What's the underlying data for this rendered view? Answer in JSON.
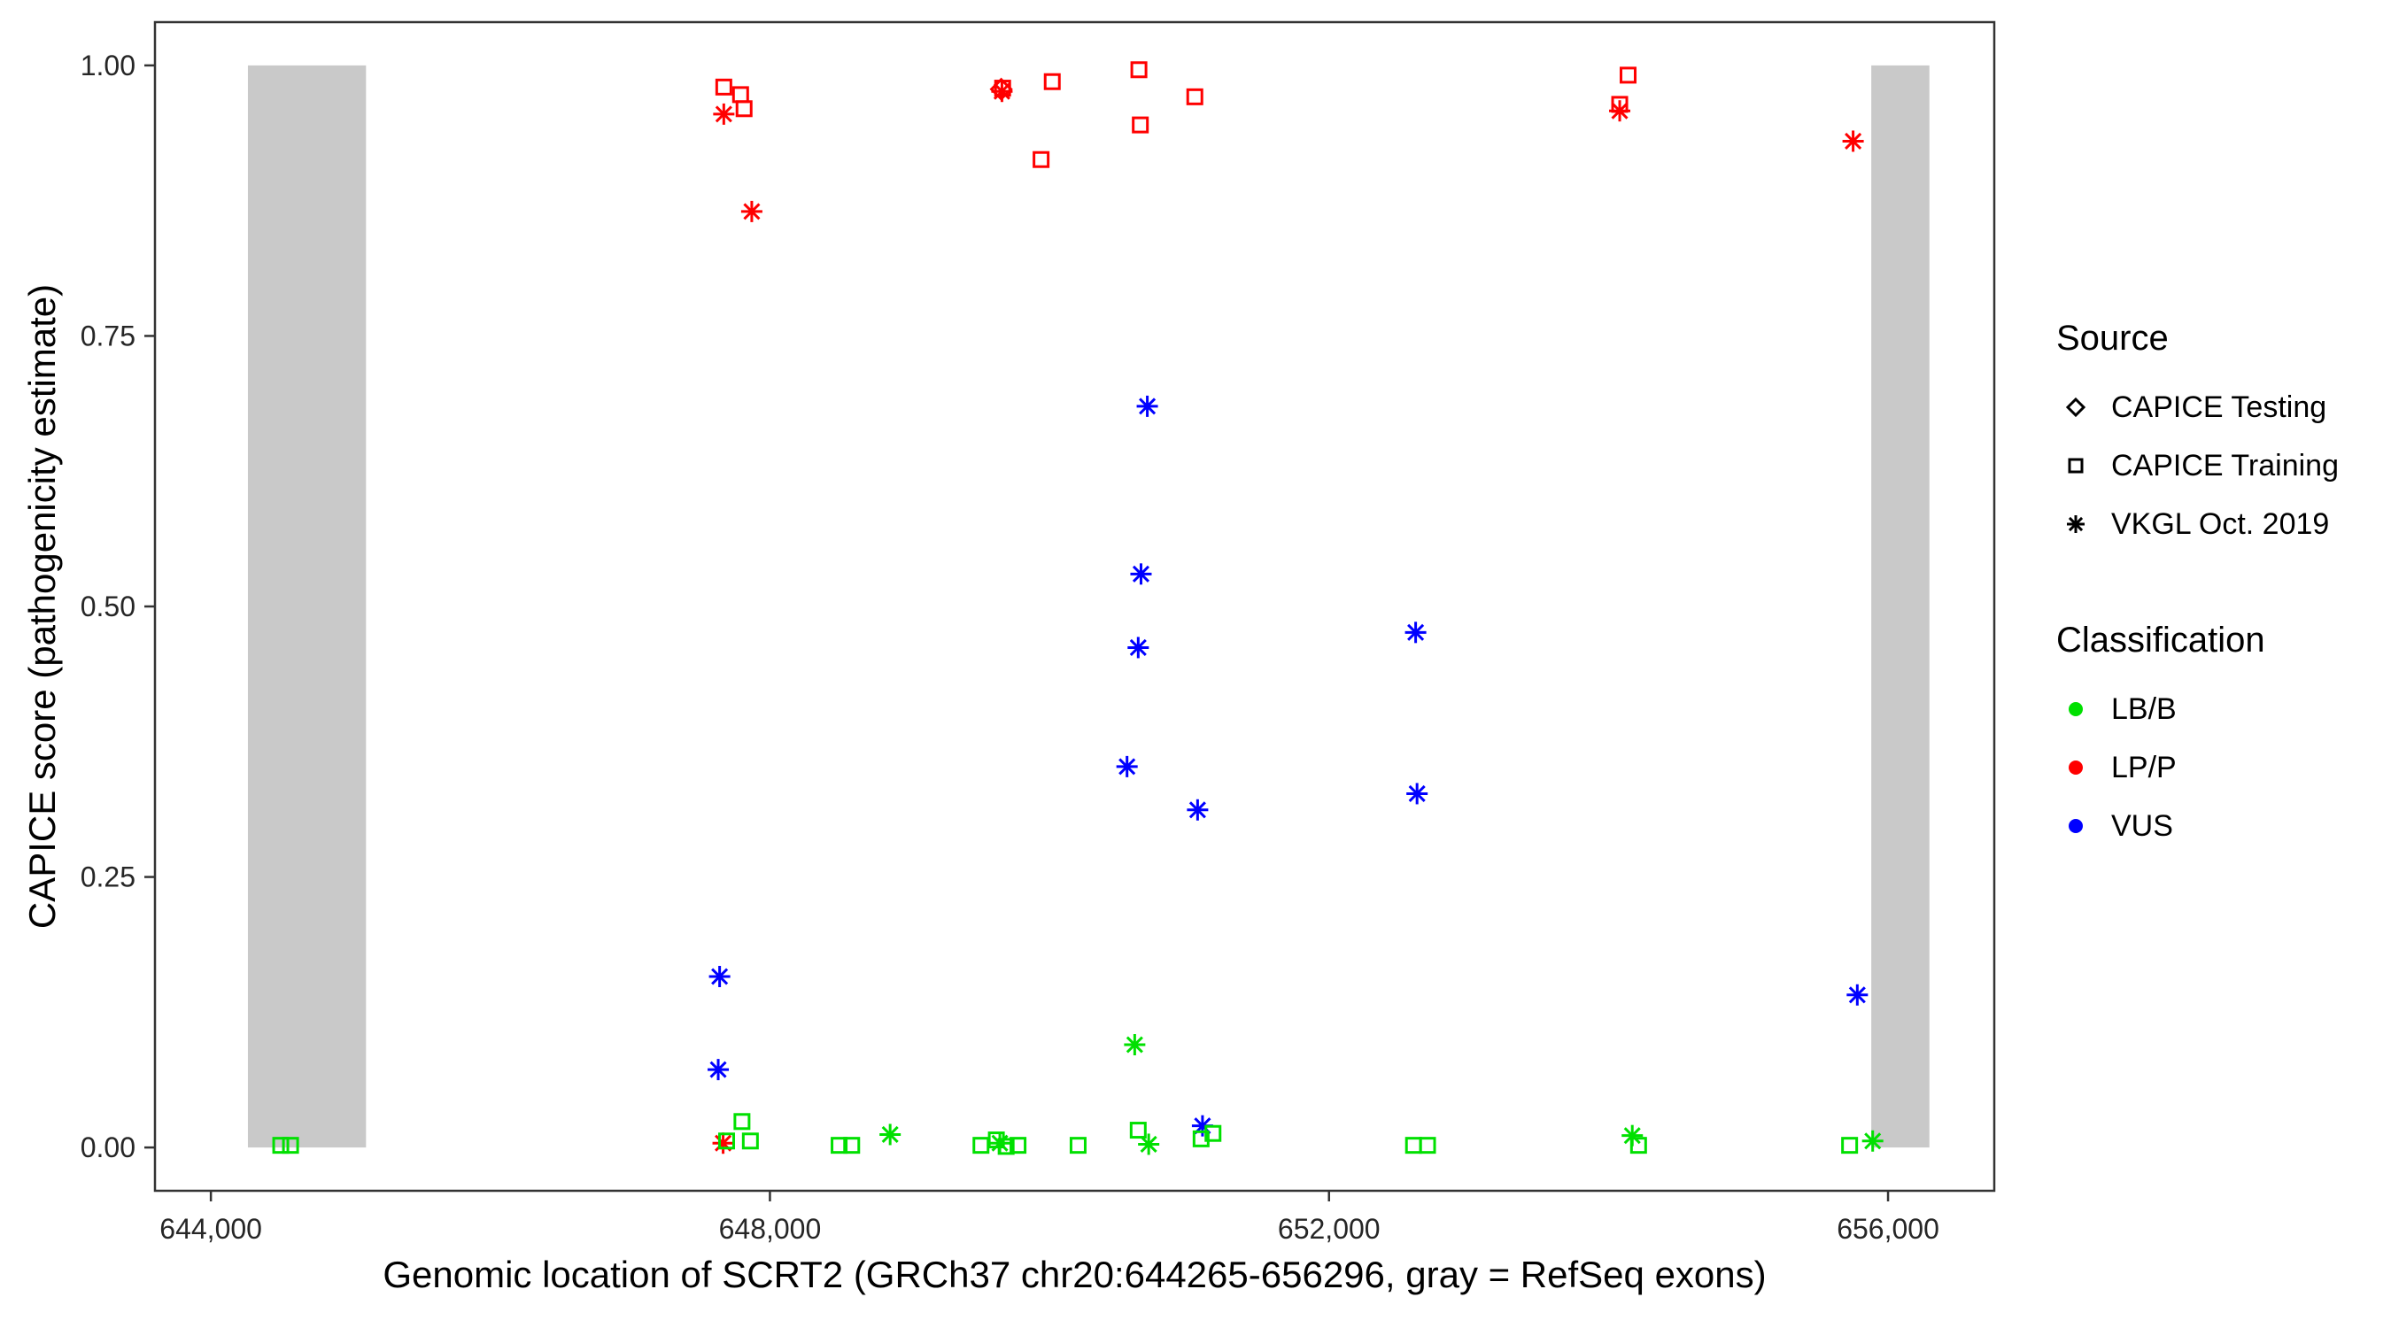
{
  "chart_data": {
    "type": "scatter",
    "title": "",
    "xlabel": "Genomic location of SCRT2 (GRCh37 chr20:644265-656296, gray = RefSeq exons)",
    "ylabel": "CAPICE score (pathogenicity estimate)",
    "xlim": [
      643600,
      656760
    ],
    "ylim": [
      -0.04,
      1.04
    ],
    "grid": false,
    "x_ticks": [
      {
        "value": 644000,
        "label": "644,000"
      },
      {
        "value": 648000,
        "label": "648,000"
      },
      {
        "value": 652000,
        "label": "652,000"
      },
      {
        "value": 656000,
        "label": "656,000"
      }
    ],
    "y_ticks": [
      {
        "value": 0.0,
        "label": "0.00"
      },
      {
        "value": 0.25,
        "label": "0.25"
      },
      {
        "value": 0.5,
        "label": "0.50"
      },
      {
        "value": 0.75,
        "label": "0.75"
      },
      {
        "value": 1.0,
        "label": "1.00"
      }
    ],
    "exons": [
      {
        "x0": 644265,
        "x1": 645110,
        "y0": 0.0,
        "y1": 1.0
      },
      {
        "x0": 655880,
        "x1": 656296,
        "y0": 0.0,
        "y1": 1.0
      }
    ],
    "colors": {
      "LB/B": "#00e000",
      "LP/P": "#ff0000",
      "VUS": "#0000ff",
      "exon": "#c9c9c9",
      "axis": "#333333",
      "tick_text": "#262626"
    },
    "legend": {
      "source_title": "Source",
      "source_items": [
        {
          "shape": "diamond",
          "label": "CAPICE Testing"
        },
        {
          "shape": "square",
          "label": "CAPICE Training"
        },
        {
          "shape": "asterisk",
          "label": "VKGL Oct. 2019"
        }
      ],
      "classification_title": "Classification",
      "classification_items": [
        {
          "cls": "LB/B",
          "label": "LB/B"
        },
        {
          "cls": "LP/P",
          "label": "LP/P"
        },
        {
          "cls": "VUS",
          "label": "VUS"
        }
      ]
    },
    "points": [
      {
        "x": 647670,
        "y": 0.98,
        "shape": "square",
        "cls": "LP/P"
      },
      {
        "x": 647790,
        "y": 0.973,
        "shape": "square",
        "cls": "LP/P"
      },
      {
        "x": 647815,
        "y": 0.96,
        "shape": "square",
        "cls": "LP/P"
      },
      {
        "x": 647670,
        "y": 0.955,
        "shape": "asterisk",
        "cls": "LP/P"
      },
      {
        "x": 647870,
        "y": 0.865,
        "shape": "asterisk",
        "cls": "LP/P"
      },
      {
        "x": 649665,
        "y": 0.979,
        "shape": "square",
        "cls": "LP/P"
      },
      {
        "x": 649655,
        "y": 0.978,
        "shape": "diamond",
        "cls": "LP/P"
      },
      {
        "x": 649660,
        "y": 0.976,
        "shape": "asterisk",
        "cls": "LP/P"
      },
      {
        "x": 650020,
        "y": 0.985,
        "shape": "square",
        "cls": "LP/P"
      },
      {
        "x": 649940,
        "y": 0.913,
        "shape": "square",
        "cls": "LP/P"
      },
      {
        "x": 650640,
        "y": 0.996,
        "shape": "square",
        "cls": "LP/P"
      },
      {
        "x": 650650,
        "y": 0.945,
        "shape": "square",
        "cls": "LP/P"
      },
      {
        "x": 651040,
        "y": 0.971,
        "shape": "square",
        "cls": "LP/P"
      },
      {
        "x": 654140,
        "y": 0.991,
        "shape": "square",
        "cls": "LP/P"
      },
      {
        "x": 654080,
        "y": 0.964,
        "shape": "square",
        "cls": "LP/P"
      },
      {
        "x": 654080,
        "y": 0.958,
        "shape": "asterisk",
        "cls": "LP/P"
      },
      {
        "x": 655750,
        "y": 0.93,
        "shape": "asterisk",
        "cls": "LP/P"
      },
      {
        "x": 647665,
        "y": 0.004,
        "shape": "asterisk",
        "cls": "LP/P"
      },
      {
        "x": 650700,
        "y": 0.685,
        "shape": "asterisk",
        "cls": "VUS"
      },
      {
        "x": 650655,
        "y": 0.53,
        "shape": "asterisk",
        "cls": "VUS"
      },
      {
        "x": 650635,
        "y": 0.462,
        "shape": "asterisk",
        "cls": "VUS"
      },
      {
        "x": 650555,
        "y": 0.352,
        "shape": "asterisk",
        "cls": "VUS"
      },
      {
        "x": 651060,
        "y": 0.312,
        "shape": "asterisk",
        "cls": "VUS"
      },
      {
        "x": 652620,
        "y": 0.476,
        "shape": "asterisk",
        "cls": "VUS"
      },
      {
        "x": 652630,
        "y": 0.327,
        "shape": "asterisk",
        "cls": "VUS"
      },
      {
        "x": 647640,
        "y": 0.158,
        "shape": "asterisk",
        "cls": "VUS"
      },
      {
        "x": 647630,
        "y": 0.072,
        "shape": "asterisk",
        "cls": "VUS"
      },
      {
        "x": 655780,
        "y": 0.141,
        "shape": "asterisk",
        "cls": "VUS"
      },
      {
        "x": 651095,
        "y": 0.02,
        "shape": "asterisk",
        "cls": "VUS"
      },
      {
        "x": 644500,
        "y": 0.002,
        "shape": "square",
        "cls": "LB/B"
      },
      {
        "x": 644570,
        "y": 0.002,
        "shape": "square",
        "cls": "LB/B"
      },
      {
        "x": 647690,
        "y": 0.006,
        "shape": "square",
        "cls": "LB/B"
      },
      {
        "x": 647800,
        "y": 0.024,
        "shape": "square",
        "cls": "LB/B"
      },
      {
        "x": 647860,
        "y": 0.006,
        "shape": "square",
        "cls": "LB/B"
      },
      {
        "x": 648495,
        "y": 0.002,
        "shape": "square",
        "cls": "LB/B"
      },
      {
        "x": 648585,
        "y": 0.002,
        "shape": "square",
        "cls": "LB/B"
      },
      {
        "x": 648860,
        "y": 0.012,
        "shape": "asterisk",
        "cls": "LB/B"
      },
      {
        "x": 649510,
        "y": 0.002,
        "shape": "square",
        "cls": "LB/B"
      },
      {
        "x": 649620,
        "y": 0.007,
        "shape": "square",
        "cls": "LB/B"
      },
      {
        "x": 649645,
        "y": 0.004,
        "shape": "asterisk",
        "cls": "LB/B"
      },
      {
        "x": 649690,
        "y": 0.001,
        "shape": "square",
        "cls": "LB/B"
      },
      {
        "x": 649775,
        "y": 0.002,
        "shape": "square",
        "cls": "LB/B"
      },
      {
        "x": 650205,
        "y": 0.002,
        "shape": "square",
        "cls": "LB/B"
      },
      {
        "x": 650635,
        "y": 0.016,
        "shape": "square",
        "cls": "LB/B"
      },
      {
        "x": 650710,
        "y": 0.003,
        "shape": "asterisk",
        "cls": "LB/B"
      },
      {
        "x": 650610,
        "y": 0.095,
        "shape": "asterisk",
        "cls": "LB/B"
      },
      {
        "x": 651085,
        "y": 0.008,
        "shape": "square",
        "cls": "LB/B"
      },
      {
        "x": 651170,
        "y": 0.013,
        "shape": "square",
        "cls": "LB/B"
      },
      {
        "x": 652605,
        "y": 0.002,
        "shape": "square",
        "cls": "LB/B"
      },
      {
        "x": 652705,
        "y": 0.002,
        "shape": "square",
        "cls": "LB/B"
      },
      {
        "x": 654170,
        "y": 0.011,
        "shape": "asterisk",
        "cls": "LB/B"
      },
      {
        "x": 654215,
        "y": 0.002,
        "shape": "square",
        "cls": "LB/B"
      },
      {
        "x": 655725,
        "y": 0.002,
        "shape": "square",
        "cls": "LB/B"
      },
      {
        "x": 655890,
        "y": 0.006,
        "shape": "asterisk",
        "cls": "LB/B"
      }
    ]
  }
}
